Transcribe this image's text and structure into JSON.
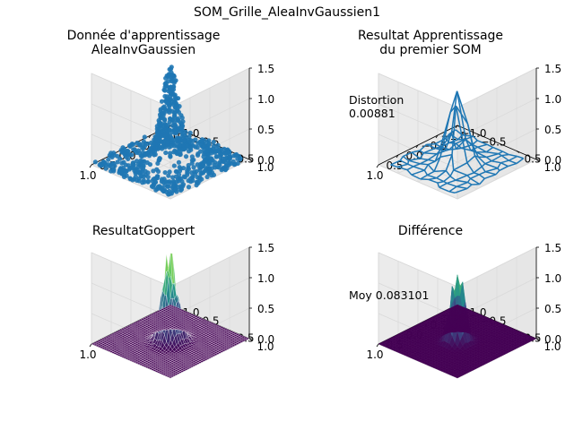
{
  "figure": {
    "suptitle": "SOM_Grille_AleaInvGaussien1"
  },
  "colors": {
    "scatter": "#1f77b4",
    "wire": "#1f77b4",
    "pane": "#f2f2f2",
    "grid": "#d9d9d9",
    "viridis": [
      "#440154",
      "#3b528b",
      "#21918c",
      "#5ec962",
      "#fde725"
    ]
  },
  "chart_data": [
    {
      "type": "scatter",
      "projection": "3d",
      "title_line1": "Donnée d'apprentissage",
      "title_line2": "AleaInvGaussien",
      "xlim": [
        -1,
        1
      ],
      "ylim": [
        -1,
        1
      ],
      "zlim": [
        0,
        1.5
      ],
      "xticks": [
        "−1.0",
        "−0.5",
        "0.0",
        "0.5",
        "1.0"
      ],
      "yticks": [
        "−1.0",
        "−0.5",
        "0.0",
        "0.5",
        "1.0"
      ],
      "zticks": [
        "0.0",
        "0.5",
        "1.0",
        "1.5"
      ],
      "surface": "z = 1.5·exp(−(x²+y²)/0.06)",
      "points": 800,
      "annotation": ""
    },
    {
      "type": "wireframe",
      "projection": "3d",
      "title_line1": "Resultat Apprentissage",
      "title_line2": "du premier SOM",
      "xlim": [
        -1,
        1
      ],
      "ylim": [
        -1,
        1
      ],
      "zlim": [
        0,
        1.5
      ],
      "xticks": [
        "−1.0",
        "−0.5",
        "0.0",
        "0.5",
        "1.0"
      ],
      "yticks": [
        "−1.0",
        "−0.5",
        "0.0",
        "0.5",
        "1.0"
      ],
      "zticks": [
        "0.0",
        "0.5",
        "1.0",
        "1.5"
      ],
      "grid_size": 10,
      "annotation_label": "Distortion",
      "annotation_value": "0.00881"
    },
    {
      "type": "surface",
      "projection": "3d",
      "title_line1": "ResultatGoppert",
      "title_line2": "",
      "xlim": [
        -1,
        1
      ],
      "ylim": [
        -1,
        1
      ],
      "zlim": [
        0,
        1.5
      ],
      "xticks": [
        "−1.0",
        "−0.5",
        "0.0",
        "0.5",
        "1.0"
      ],
      "yticks": [
        "−1.0",
        "−0.5",
        "0.0",
        "0.5",
        "1.0"
      ],
      "zticks": [
        "0.0",
        "0.5",
        "1.0",
        "1.5"
      ],
      "colormap": "viridis",
      "grid_size": 40,
      "annotation": ""
    },
    {
      "type": "surface",
      "projection": "3d",
      "title_line1": "Différence",
      "title_line2": "",
      "xlim": [
        -1,
        1
      ],
      "ylim": [
        -1,
        1
      ],
      "zlim": [
        0,
        1.5
      ],
      "xticks": [
        "−1.0",
        "−0.5",
        "0.0",
        "0.5",
        "1.0"
      ],
      "yticks": [
        "−1.0",
        "−0.5",
        "0.0",
        "0.5",
        "1.0"
      ],
      "zticks": [
        "0.0",
        "0.5",
        "1.0",
        "1.5"
      ],
      "colormap": "viridis",
      "grid_size": 30,
      "annotation": "Moy 0.083101"
    }
  ]
}
